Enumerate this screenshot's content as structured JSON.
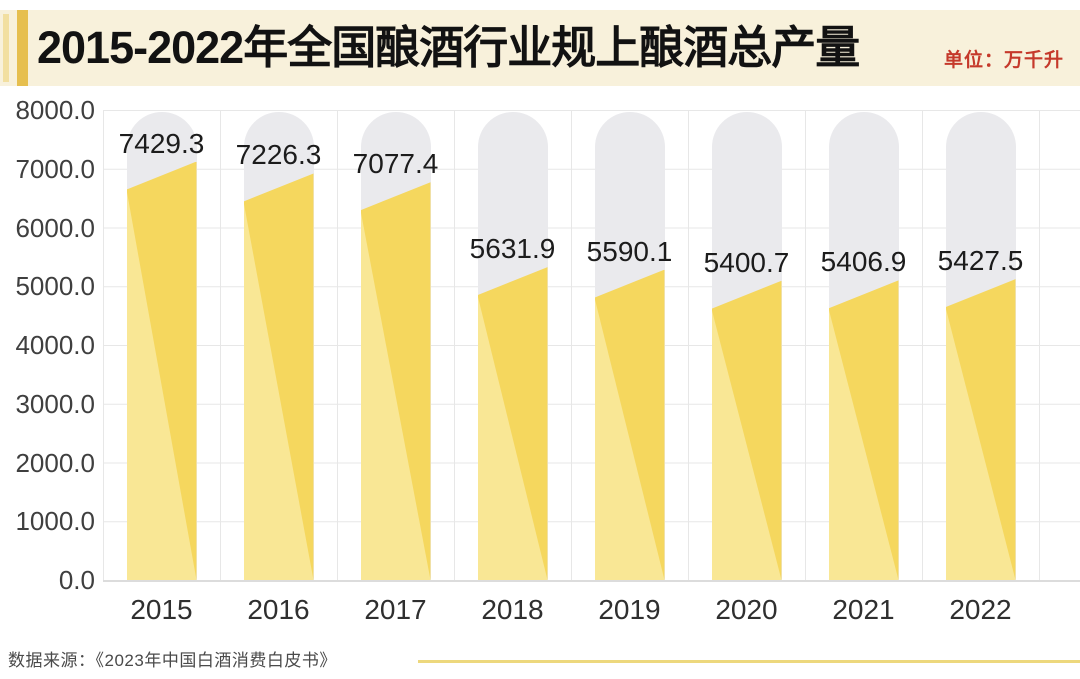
{
  "header": {
    "title": "2015-2022年全国酿酒行业规上酿酒总产量",
    "unit_label": "单位：万千升"
  },
  "chart_data": {
    "type": "bar",
    "title": "2015-2022年全国酿酒行业规上酿酒总产量",
    "unit": "万千升",
    "categories": [
      "2015",
      "2016",
      "2017",
      "2018",
      "2019",
      "2020",
      "2021",
      "2022"
    ],
    "values": [
      7429.3,
      7226.3,
      7077.4,
      5631.9,
      5590.1,
      5400.7,
      5406.9,
      5427.5
    ],
    "value_labels": [
      "7429.3",
      "7226.3",
      "7077.4",
      "5631.9",
      "5590.1",
      "5400.7",
      "5406.9",
      "5427.5"
    ],
    "xlabel": "",
    "ylabel": "",
    "ylim": [
      0,
      8000
    ],
    "ytick_step": 1000,
    "yticks": [
      "8000.0",
      "7000.0",
      "6000.0",
      "5000.0",
      "4000.0",
      "3000.0",
      "2000.0",
      "1000.0",
      "0.0"
    ],
    "grid": true,
    "legend": false,
    "colors": {
      "bar_fill": "#F5D75E",
      "bar_fill_light": "#F9E795",
      "bar_track": "#EAEAED",
      "header_bg": "#F8F1DB",
      "accent_gold": "#E6BF4F",
      "accent_pale": "#F2DFA0",
      "unit_text": "#C5392B",
      "footer_rule": "#EDD87D"
    }
  },
  "footer": {
    "source": "数据来源：《2023年中国白酒消费白皮书》"
  }
}
